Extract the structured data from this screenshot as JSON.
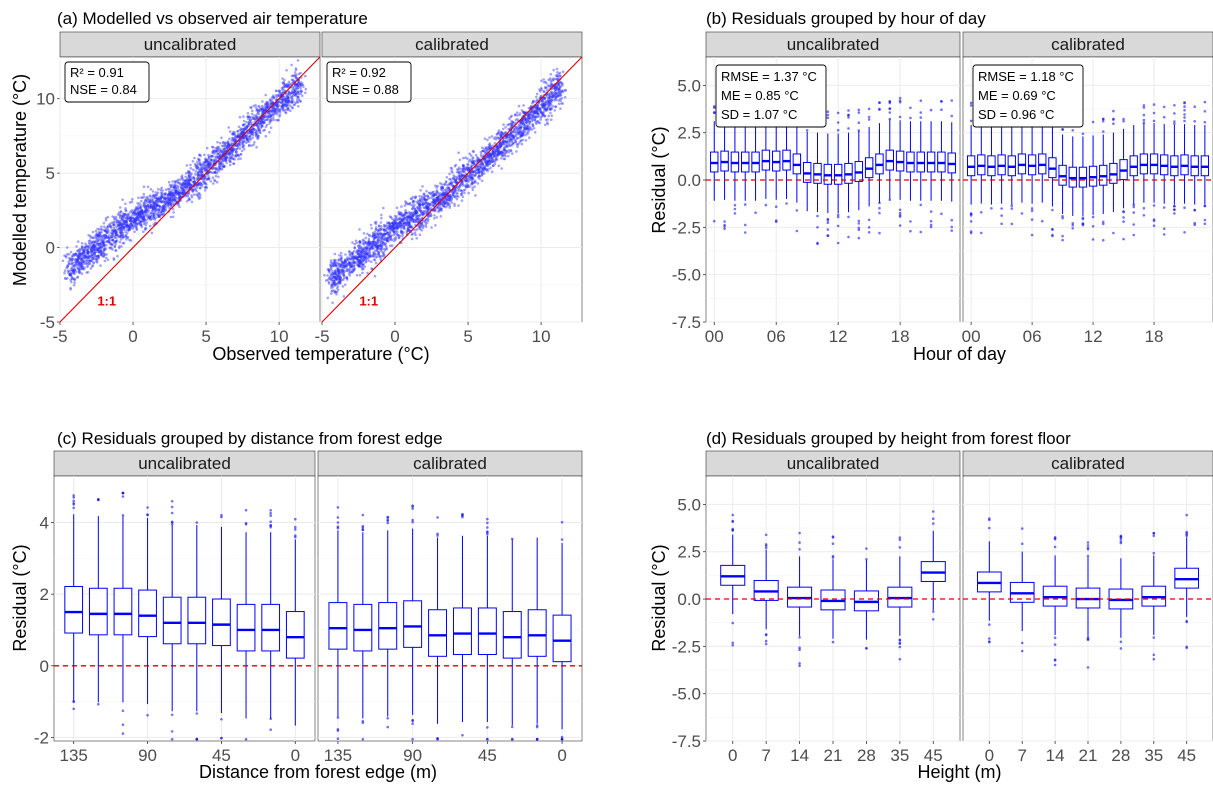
{
  "chart_data": [
    {
      "id": "a",
      "type": "scatter",
      "title": "(a) Modelled vs observed air temperature",
      "xlabel": "Observed temperature (°C)",
      "ylabel": "Modelled temperature (°C)",
      "xlim": [
        -5,
        12.8
      ],
      "ylim": [
        -5,
        12.8
      ],
      "xticks": [
        "-5",
        "0",
        "5",
        "10"
      ],
      "yticks": [
        "-5",
        "0",
        "5",
        "10"
      ],
      "point_color": "#3333ff",
      "reference_line": "1:1",
      "reference_label": "1:1",
      "reference_color": "#e00000",
      "facets": [
        {
          "label": "uncalibrated",
          "stats": [
            "R² = 0.91",
            "NSE = 0.84"
          ],
          "trend": [
            [
              -4.5,
              -1.6
            ],
            [
              -2,
              0.5
            ],
            [
              0,
              2
            ],
            [
              3,
              3.6
            ],
            [
              6,
              6
            ],
            [
              9,
              8.9
            ],
            [
              11.5,
              11
            ]
          ]
        },
        {
          "label": "calibrated",
          "stats": [
            "R² = 0.92",
            "NSE = 0.88"
          ],
          "trend": [
            [
              -4.5,
              -2.2
            ],
            [
              -2,
              -0.2
            ],
            [
              0,
              1.4
            ],
            [
              3,
              3.2
            ],
            [
              6,
              5.7
            ],
            [
              9,
              8.6
            ],
            [
              11.5,
              10.9
            ]
          ]
        }
      ]
    },
    {
      "id": "b",
      "type": "box",
      "title": "(b) Residuals grouped by hour of day",
      "xlabel": "Hour of day",
      "ylabel": "Residual (°C)",
      "ylim": [
        -7.5,
        6.5
      ],
      "yticks": [
        "-7.5",
        "-5.0",
        "-2.5",
        "0.0",
        "2.5",
        "5.0"
      ],
      "xticks": [
        "00",
        "06",
        "12",
        "18"
      ],
      "box_color": "#0000ff",
      "reference_y": 0,
      "facets": [
        {
          "label": "uncalibrated",
          "stats": [
            "RMSE = 1.37 °C",
            "ME = 0.85 °C",
            "SD = 1.07 °C"
          ],
          "medians": [
            0.9,
            0.95,
            0.9,
            0.9,
            0.9,
            1.0,
            0.95,
            1.0,
            0.8,
            0.35,
            0.3,
            0.25,
            0.25,
            0.3,
            0.4,
            0.6,
            0.8,
            1.0,
            0.95,
            0.9,
            0.9,
            0.9,
            0.9,
            0.85
          ]
        },
        {
          "label": "calibrated",
          "stats": [
            "RMSE = 1.18 °C",
            "ME = 0.69 °C",
            "SD = 0.96 °C"
          ],
          "medians": [
            0.7,
            0.75,
            0.7,
            0.75,
            0.7,
            0.8,
            0.75,
            0.8,
            0.6,
            0.2,
            0.1,
            0.1,
            0.15,
            0.2,
            0.3,
            0.5,
            0.7,
            0.8,
            0.8,
            0.75,
            0.7,
            0.75,
            0.7,
            0.7
          ]
        }
      ]
    },
    {
      "id": "c",
      "type": "box",
      "title": "(c) Residuals grouped by distance from forest edge",
      "xlabel": "Distance from forest edge (m)",
      "ylabel": "Residual (°C)",
      "ylim": [
        -2.1,
        5.3
      ],
      "yticks": [
        "-2",
        "0",
        "2",
        "4"
      ],
      "xticks": [
        "135",
        "90",
        "45",
        "0"
      ],
      "box_color": "#0000ff",
      "reference_y": 0,
      "facets": [
        {
          "label": "uncalibrated",
          "medians": [
            1.5,
            1.45,
            1.45,
            1.4,
            1.2,
            1.2,
            1.15,
            1.0,
            1.0,
            0.8
          ]
        },
        {
          "label": "calibrated",
          "medians": [
            1.05,
            1.0,
            1.05,
            1.1,
            0.85,
            0.9,
            0.9,
            0.8,
            0.85,
            0.7
          ]
        }
      ]
    },
    {
      "id": "d",
      "type": "box",
      "title": "(d) Residuals grouped by height from forest floor",
      "xlabel": "Height (m)",
      "ylabel": "Residual (°C)",
      "ylim": [
        -7.5,
        6.5
      ],
      "yticks": [
        "-7.5",
        "-5.0",
        "-2.5",
        "0.0",
        "2.5",
        "5.0"
      ],
      "xticks": [
        "0",
        "7",
        "14",
        "21",
        "28",
        "35",
        "45"
      ],
      "box_color": "#0000ff",
      "reference_y": 0,
      "facets": [
        {
          "label": "uncalibrated",
          "medians": [
            1.2,
            0.4,
            0.05,
            -0.1,
            -0.15,
            0.05,
            1.4
          ]
        },
        {
          "label": "calibrated",
          "medians": [
            0.85,
            0.3,
            0.1,
            0.0,
            -0.05,
            0.1,
            1.05
          ]
        }
      ]
    }
  ]
}
